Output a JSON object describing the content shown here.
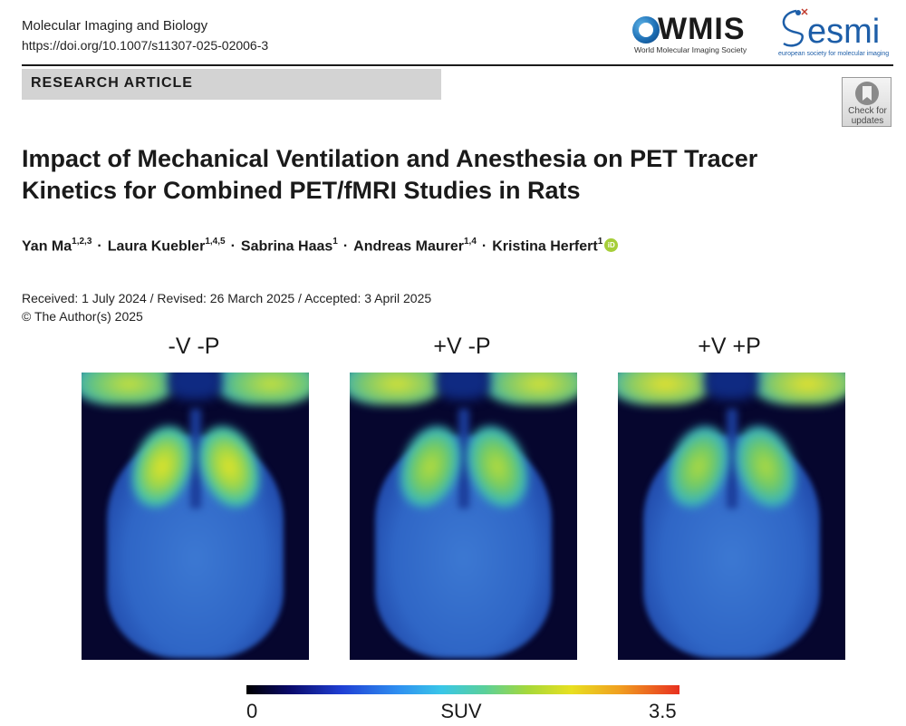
{
  "header": {
    "journal": "Molecular Imaging and Biology",
    "doi": "https://doi.org/10.1007/s11307-025-02006-3"
  },
  "logos": {
    "wmis_word": "WMIS",
    "wmis_subtitle": "World Molecular Imaging Society",
    "esmi_word": "esmi",
    "esmi_subtitle": "european society for molecular imaging"
  },
  "band": {
    "label": "RESEARCH ARTICLE"
  },
  "check_updates": {
    "line1": "Check for",
    "line2": "updates"
  },
  "title": "Impact of Mechanical Ventilation and Anesthesia on PET Tracer Kinetics for Combined PET/fMRI Studies in Rats",
  "authors": [
    {
      "name": "Yan Ma",
      "affil": "1,2,3"
    },
    {
      "name": "Laura Kuebler",
      "affil": "1,4,5"
    },
    {
      "name": "Sabrina Haas",
      "affil": "1"
    },
    {
      "name": "Andreas Maurer",
      "affil": "1,4"
    },
    {
      "name": "Kristina Herfert",
      "affil": "1"
    }
  ],
  "orcid_label": "iD",
  "dates": "Received: 1 July 2024 / Revised: 26 March 2025 / Accepted: 3 April 2025",
  "copyright": "© The Author(s) 2025",
  "panels": [
    {
      "label": "-V -P"
    },
    {
      "label": "+V -P"
    },
    {
      "label": "+V +P"
    }
  ],
  "colorbar": {
    "min": "0",
    "label": "SUV",
    "max": "3.5"
  }
}
